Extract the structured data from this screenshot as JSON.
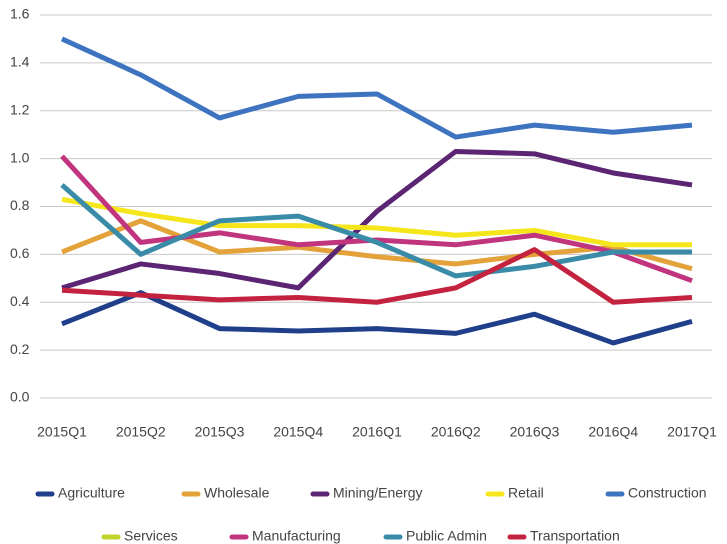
{
  "chart_data": {
    "type": "line",
    "categories": [
      "2015Q1",
      "2015Q2",
      "2015Q3",
      "2015Q4",
      "2016Q1",
      "2016Q2",
      "2016Q3",
      "2016Q4",
      "2017Q1"
    ],
    "series": [
      {
        "name": "Agriculture",
        "color": "#1f3f8a",
        "values": [
          0.31,
          0.44,
          0.29,
          0.28,
          0.29,
          0.27,
          0.35,
          0.23,
          0.32
        ]
      },
      {
        "name": "Wholesale",
        "color": "#e3a23a",
        "values": [
          0.61,
          0.74,
          0.61,
          0.63,
          0.59,
          0.56,
          0.6,
          0.63,
          0.54
        ]
      },
      {
        "name": "Mining/Energy",
        "color": "#5c2574",
        "values": [
          0.46,
          0.56,
          0.52,
          0.46,
          0.78,
          1.03,
          1.02,
          0.94,
          0.89
        ]
      },
      {
        "name": "Retail",
        "color": "#f5e51b",
        "values": [
          0.83,
          0.77,
          0.72,
          0.72,
          0.71,
          0.68,
          0.7,
          0.64,
          0.64
        ]
      },
      {
        "name": "Construction",
        "color": "#3e73c0",
        "values": [
          1.5,
          1.35,
          1.17,
          1.26,
          1.27,
          1.09,
          1.14,
          1.11,
          1.14
        ]
      },
      {
        "name": "Services",
        "color": "#c4d32c",
        "values": [
          null,
          null,
          null,
          null,
          null,
          null,
          null,
          null,
          null
        ]
      },
      {
        "name": "Manufacturing",
        "color": "#c0357e",
        "values": [
          1.01,
          0.65,
          0.69,
          0.64,
          0.66,
          0.64,
          0.68,
          0.61,
          0.49
        ]
      },
      {
        "name": "Public Admin",
        "color": "#3a8ba8",
        "values": [
          0.89,
          0.6,
          0.74,
          0.76,
          0.65,
          0.51,
          0.55,
          0.61,
          0.61
        ]
      },
      {
        "name": "Transportation",
        "color": "#c4233f",
        "values": [
          0.45,
          0.43,
          0.41,
          0.42,
          0.4,
          0.46,
          0.62,
          0.4,
          0.42
        ]
      }
    ],
    "ylim": [
      0,
      1.6
    ],
    "yticks": [
      {
        "value": 0,
        "label": "0.0"
      },
      0.2,
      0.4,
      0.6,
      0.8,
      {
        "value": 1,
        "label": "1.0"
      },
      1.2,
      1.4,
      1.6
    ],
    "grid": true
  }
}
